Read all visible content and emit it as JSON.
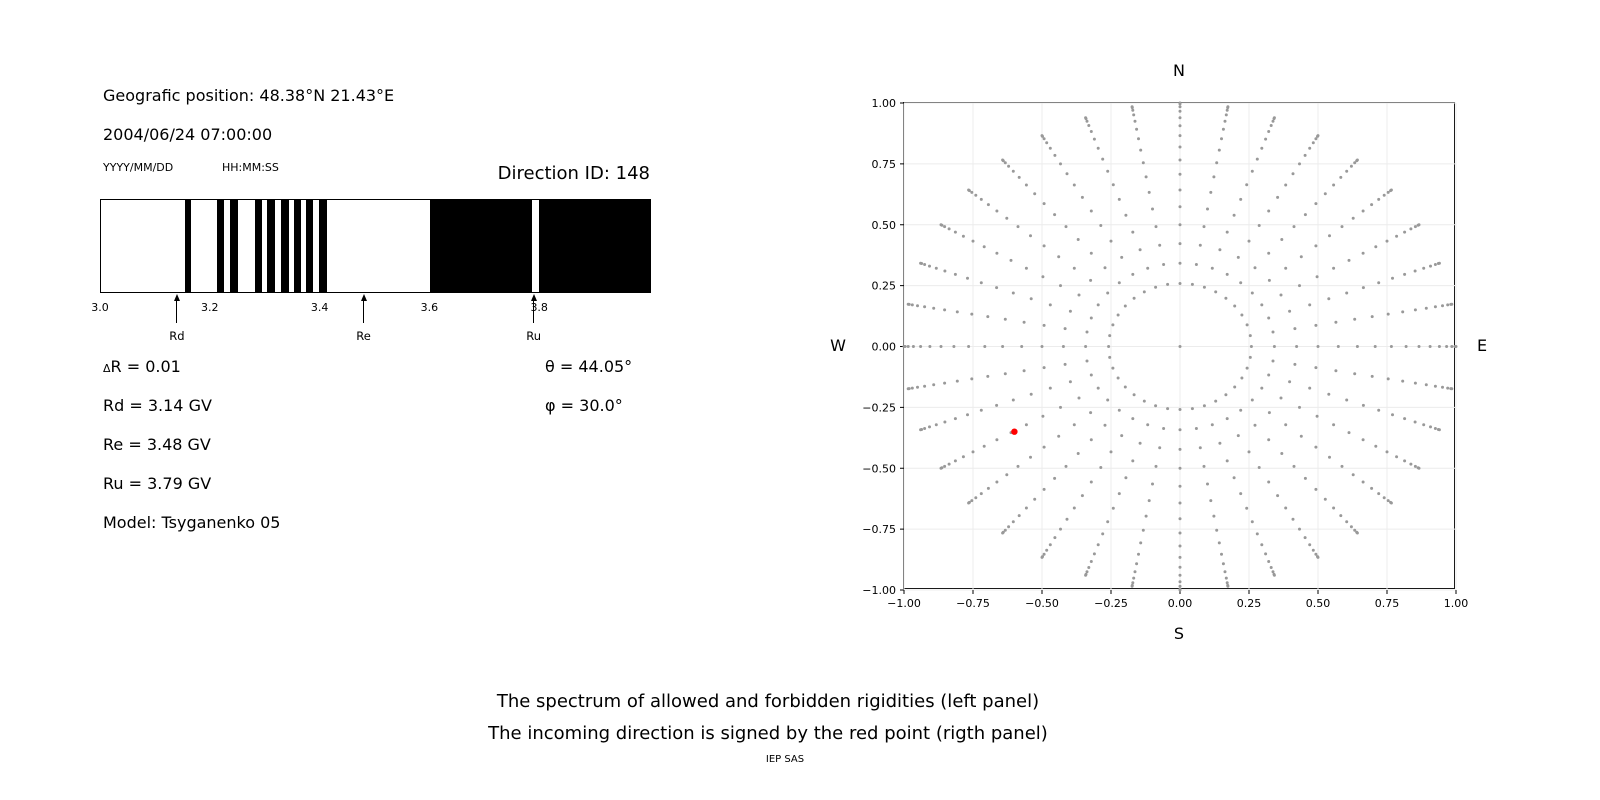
{
  "left_panel": {
    "position_label": "Geografic position: 48.38°N 21.43°E",
    "datetime": "2004/06/24 07:00:00",
    "date_format": "YYYY/MM/DD",
    "time_format": "HH:MM:SS",
    "direction_id": "Direction ID: 148",
    "info": {
      "delta_symbol": "Δ",
      "delta_rest": "R = 0.01",
      "rd": "Rd = 3.14 GV",
      "re": "Re = 3.48 GV",
      "ru": "Ru = 3.79 GV",
      "model": "Model: Tsyganenko 05",
      "theta": "θ = 44.05°",
      "phi": "φ = 30.0°"
    }
  },
  "caption": {
    "line1": "The spectrum of allowed and forbidden rigidities (left panel)",
    "line2": "The incoming direction is signed by the red point (rigth panel)",
    "footer": "IEP SAS"
  },
  "chart_data": [
    {
      "type": "bar",
      "name": "rigidity spectrum of allowed (black) and forbidden (white) bands",
      "unit": "GV",
      "xlim": [
        3.0,
        4.0
      ],
      "xticks": [
        3.0,
        3.2,
        3.4,
        3.6,
        3.8
      ],
      "xtick_labels": [
        "3.0",
        "3.2",
        "3.4",
        "3.6",
        "3.8"
      ],
      "bar_color": "#000000",
      "background": "#ffffff",
      "black_intervals_gv": [
        [
          3.153,
          3.164
        ],
        [
          3.211,
          3.225
        ],
        [
          3.234,
          3.249
        ],
        [
          3.28,
          3.294
        ],
        [
          3.303,
          3.318
        ],
        [
          3.328,
          3.343
        ],
        [
          3.352,
          3.365
        ],
        [
          3.374,
          3.387
        ],
        [
          3.397,
          3.412
        ],
        [
          3.6,
          3.785
        ],
        [
          3.798,
          4.0
        ]
      ],
      "markers": [
        {
          "label": "Rd",
          "value_gv": 3.14
        },
        {
          "label": "Re",
          "value_gv": 3.48
        },
        {
          "label": "Ru",
          "value_gv": 3.79
        }
      ]
    },
    {
      "type": "scatter",
      "name": "incoming direction map",
      "xlim": [
        -1.0,
        1.0
      ],
      "ylim": [
        -1.0,
        1.0
      ],
      "xticks": [
        -1.0,
        -0.75,
        -0.5,
        -0.25,
        0.0,
        0.25,
        0.5,
        0.75,
        1.0
      ],
      "xtick_labels": [
        "−1.00",
        "−0.75",
        "−0.50",
        "−0.25",
        "0.00",
        "0.25",
        "0.50",
        "0.75",
        "1.00"
      ],
      "yticks": [
        -1.0,
        -0.75,
        -0.5,
        -0.25,
        0.0,
        0.25,
        0.5,
        0.75,
        1.0
      ],
      "ytick_labels": [
        "−1.00",
        "−0.75",
        "−0.50",
        "−0.25",
        "0.00",
        "0.25",
        "0.50",
        "0.75",
        "1.00"
      ],
      "grid": true,
      "grid_color": "#ececec",
      "compass_labels": {
        "top": "N",
        "bottom": "S",
        "left": "W",
        "right": "E"
      },
      "direction_grid": {
        "dot_color": "#999999",
        "radius_rule": "r = sin(zenith)",
        "azimuth_deg": {
          "start": 0,
          "stop": 350,
          "step": 10
        },
        "zenith_deg": {
          "start": 15,
          "stop": 90,
          "step": 5
        },
        "center_point": [
          0,
          0
        ]
      },
      "red_point": {
        "x": -0.6,
        "y": -0.35,
        "color": "#ff0000",
        "label": "incoming direction"
      }
    }
  ]
}
